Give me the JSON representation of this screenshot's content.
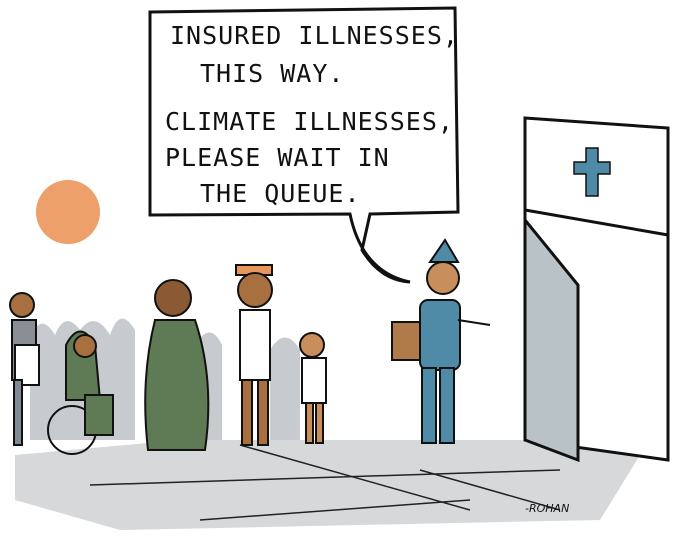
{
  "speech_bubble": {
    "lines": [
      "INSURED ILLNESSES,",
      "THIS WAY.",
      "CLIMATE ILLNESSES,",
      "PLEASE WAIT IN",
      "THE QUEUE."
    ]
  },
  "signature": "-ROHAN"
}
